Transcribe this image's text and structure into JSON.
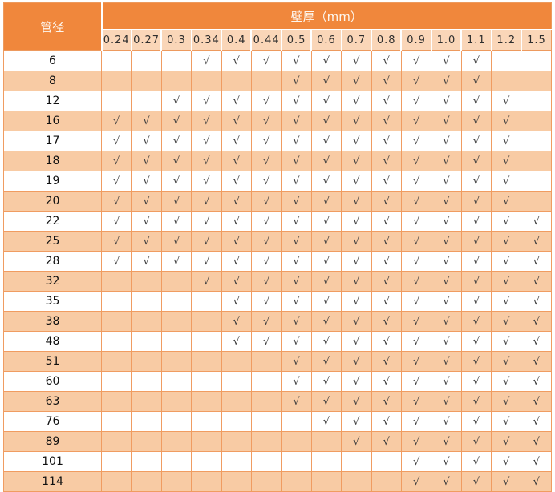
{
  "table": {
    "diameter_label": "管径",
    "thickness_label": "壁厚（mm）",
    "check_symbol": "√",
    "columns": [
      "0.24",
      "0.27",
      "0.3",
      "0.34",
      "0.4",
      "0.44",
      "0.5",
      "0.6",
      "0.7",
      "0.8",
      "0.9",
      "1.0",
      "1.1",
      "1.2",
      "1.5"
    ],
    "rows": [
      {
        "diameter": "6",
        "checked": [
          "0.34",
          "0.4",
          "0.44",
          "0.5",
          "0.6",
          "0.7",
          "0.8",
          "0.9",
          "1.0",
          "1.1"
        ]
      },
      {
        "diameter": "8",
        "checked": [
          "0.5",
          "0.6",
          "0.7",
          "0.8",
          "0.9",
          "1.0",
          "1.1"
        ]
      },
      {
        "diameter": "12",
        "checked": [
          "0.3",
          "0.34",
          "0.4",
          "0.44",
          "0.5",
          "0.6",
          "0.7",
          "0.8",
          "0.9",
          "1.0",
          "1.1",
          "1.2"
        ]
      },
      {
        "diameter": "16",
        "checked": [
          "0.24",
          "0.27",
          "0.3",
          "0.34",
          "0.4",
          "0.44",
          "0.5",
          "0.6",
          "0.7",
          "0.8",
          "0.9",
          "1.0",
          "1.1",
          "1.2"
        ]
      },
      {
        "diameter": "17",
        "checked": [
          "0.24",
          "0.27",
          "0.3",
          "0.34",
          "0.4",
          "0.44",
          "0.5",
          "0.6",
          "0.7",
          "0.8",
          "0.9",
          "1.0",
          "1.1",
          "1.2"
        ]
      },
      {
        "diameter": "18",
        "checked": [
          "0.24",
          "0.27",
          "0.3",
          "0.34",
          "0.4",
          "0.44",
          "0.5",
          "0.6",
          "0.7",
          "0.8",
          "0.9",
          "1.0",
          "1.1",
          "1.2"
        ]
      },
      {
        "diameter": "19",
        "checked": [
          "0.24",
          "0.27",
          "0.3",
          "0.34",
          "0.4",
          "0.44",
          "0.5",
          "0.6",
          "0.7",
          "0.8",
          "0.9",
          "1.0",
          "1.1",
          "1.2"
        ]
      },
      {
        "diameter": "20",
        "checked": [
          "0.24",
          "0.27",
          "0.3",
          "0.34",
          "0.4",
          "0.44",
          "0.5",
          "0.6",
          "0.7",
          "0.8",
          "0.9",
          "1.0",
          "1.1",
          "1.2"
        ]
      },
      {
        "diameter": "22",
        "checked": [
          "0.24",
          "0.27",
          "0.3",
          "0.34",
          "0.4",
          "0.44",
          "0.5",
          "0.6",
          "0.7",
          "0.8",
          "0.9",
          "1.0",
          "1.1",
          "1.2",
          "1.5"
        ]
      },
      {
        "diameter": "25",
        "checked": [
          "0.24",
          "0.27",
          "0.3",
          "0.34",
          "0.4",
          "0.44",
          "0.5",
          "0.6",
          "0.7",
          "0.8",
          "0.9",
          "1.0",
          "1.1",
          "1.2",
          "1.5"
        ]
      },
      {
        "diameter": "28",
        "checked": [
          "0.24",
          "0.27",
          "0.3",
          "0.34",
          "0.4",
          "0.44",
          "0.5",
          "0.6",
          "0.7",
          "0.8",
          "0.9",
          "1.0",
          "1.1",
          "1.2",
          "1.5"
        ]
      },
      {
        "diameter": "32",
        "checked": [
          "0.34",
          "0.4",
          "0.44",
          "0.5",
          "0.6",
          "0.7",
          "0.8",
          "0.9",
          "1.0",
          "1.1",
          "1.2",
          "1.5"
        ]
      },
      {
        "diameter": "35",
        "checked": [
          "0.4",
          "0.44",
          "0.5",
          "0.6",
          "0.7",
          "0.8",
          "0.9",
          "1.0",
          "1.1",
          "1.2",
          "1.5"
        ]
      },
      {
        "diameter": "38",
        "checked": [
          "0.4",
          "0.44",
          "0.5",
          "0.6",
          "0.7",
          "0.8",
          "0.9",
          "1.0",
          "1.1",
          "1.2",
          "1.5"
        ]
      },
      {
        "diameter": "48",
        "checked": [
          "0.4",
          "0.44",
          "0.5",
          "0.6",
          "0.7",
          "0.8",
          "0.9",
          "1.0",
          "1.1",
          "1.2",
          "1.5"
        ]
      },
      {
        "diameter": "51",
        "checked": [
          "0.5",
          "0.6",
          "0.7",
          "0.8",
          "0.9",
          "1.0",
          "1.1",
          "1.2",
          "1.5"
        ]
      },
      {
        "diameter": "60",
        "checked": [
          "0.5",
          "0.6",
          "0.7",
          "0.8",
          "0.9",
          "1.0",
          "1.1",
          "1.2",
          "1.5"
        ]
      },
      {
        "diameter": "63",
        "checked": [
          "0.5",
          "0.6",
          "0.7",
          "0.8",
          "0.9",
          "1.0",
          "1.1",
          "1.2",
          "1.5"
        ]
      },
      {
        "diameter": "76",
        "checked": [
          "0.6",
          "0.7",
          "0.8",
          "0.9",
          "1.0",
          "1.1",
          "1.2",
          "1.5"
        ]
      },
      {
        "diameter": "89",
        "checked": [
          "0.7",
          "0.8",
          "0.9",
          "1.0",
          "1.1",
          "1.2",
          "1.5"
        ]
      },
      {
        "diameter": "101",
        "checked": [
          "0.9",
          "1.0",
          "1.1",
          "1.2",
          "1.5"
        ]
      },
      {
        "diameter": "114",
        "checked": [
          "0.9",
          "1.0",
          "1.1",
          "1.2",
          "1.5"
        ]
      }
    ],
    "colors": {
      "header_orange": "#f0873c",
      "subheader_bg": "#fad6b8",
      "stripe_bg": "#f8cba4",
      "white_row": "#ffffff",
      "border_orange": "#f09c61",
      "check_color": "#3c3c3c"
    }
  }
}
